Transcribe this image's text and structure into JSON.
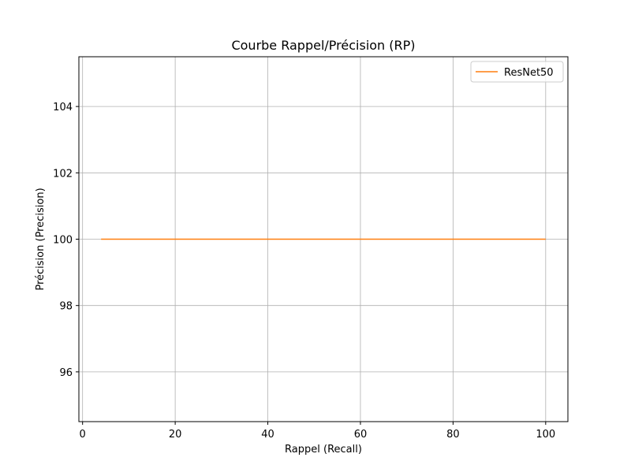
{
  "chart_data": {
    "type": "line",
    "title": "Courbe Rappel/Précision (RP)",
    "xlabel": "Rappel (Recall)",
    "ylabel": "Précision (Precision)",
    "xlim": [
      -0.8,
      104.8
    ],
    "ylim": [
      94.5,
      105.5
    ],
    "xticks": [
      0,
      20,
      40,
      60,
      80,
      100
    ],
    "yticks": [
      96,
      98,
      100,
      102,
      104
    ],
    "grid": true,
    "legend_position": "top-right",
    "series": [
      {
        "name": "ResNet50",
        "color": "#ff7f0e",
        "x": [
          4,
          100
        ],
        "y": [
          100,
          100
        ]
      }
    ]
  }
}
